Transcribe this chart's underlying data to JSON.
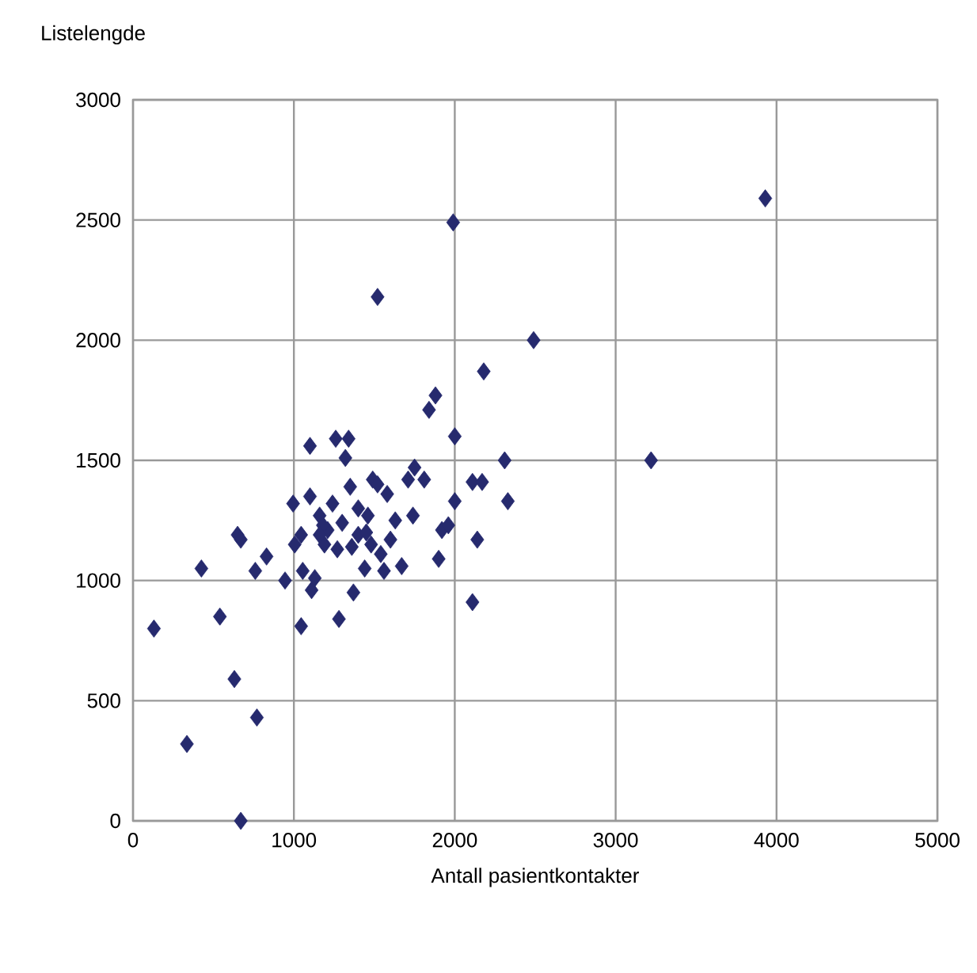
{
  "chart_data": {
    "type": "scatter",
    "xlabel": "Antall pasientkontakter",
    "ylabel": "Listelengde",
    "xlim": [
      0,
      5000
    ],
    "xticks": [
      0,
      1000,
      2000,
      3000,
      4000,
      5000
    ],
    "ylim": [
      0,
      3000
    ],
    "yticks": [
      0,
      500,
      1000,
      1500,
      2000,
      2500,
      3000
    ],
    "grid": true,
    "marker": "diamond",
    "color": "#262a6e",
    "x": [
      130,
      335,
      425,
      540,
      630,
      650,
      670,
      670,
      760,
      770,
      830,
      945,
      1005,
      995,
      1045,
      1045,
      1055,
      1100,
      1100,
      1110,
      1130,
      1160,
      1190,
      1210,
      1240,
      1260,
      1280,
      1320,
      1340,
      1350,
      1370,
      1360,
      1400,
      1400,
      1440,
      1460,
      1490,
      1480,
      1520,
      1520,
      1540,
      1560,
      1580,
      1600,
      1630,
      1670,
      1710,
      1750,
      1740,
      1810,
      1840,
      1880,
      1900,
      1920,
      1960,
      1990,
      2000,
      2000,
      2110,
      2110,
      2140,
      2170,
      2180,
      2310,
      2330,
      2490,
      3220,
      3930,
      1180,
      1300,
      1450,
      1270,
      1160
    ],
    "values": [
      800,
      320,
      1050,
      850,
      590,
      1190,
      1170,
      0,
      1040,
      430,
      1100,
      1000,
      1150,
      1320,
      810,
      1190,
      1040,
      1560,
      1350,
      960,
      1010,
      1270,
      1150,
      1210,
      1320,
      1590,
      840,
      1510,
      1590,
      1390,
      950,
      1140,
      1190,
      1300,
      1050,
      1270,
      1420,
      1150,
      2180,
      1400,
      1110,
      1040,
      1360,
      1170,
      1250,
      1060,
      1420,
      1470,
      1270,
      1420,
      1710,
      1770,
      1090,
      1210,
      1230,
      2490,
      1600,
      1330,
      1410,
      910,
      1170,
      1410,
      1870,
      1500,
      1330,
      2000,
      1500,
      2590,
      1230,
      1240,
      1200,
      1130,
      1190
    ]
  }
}
